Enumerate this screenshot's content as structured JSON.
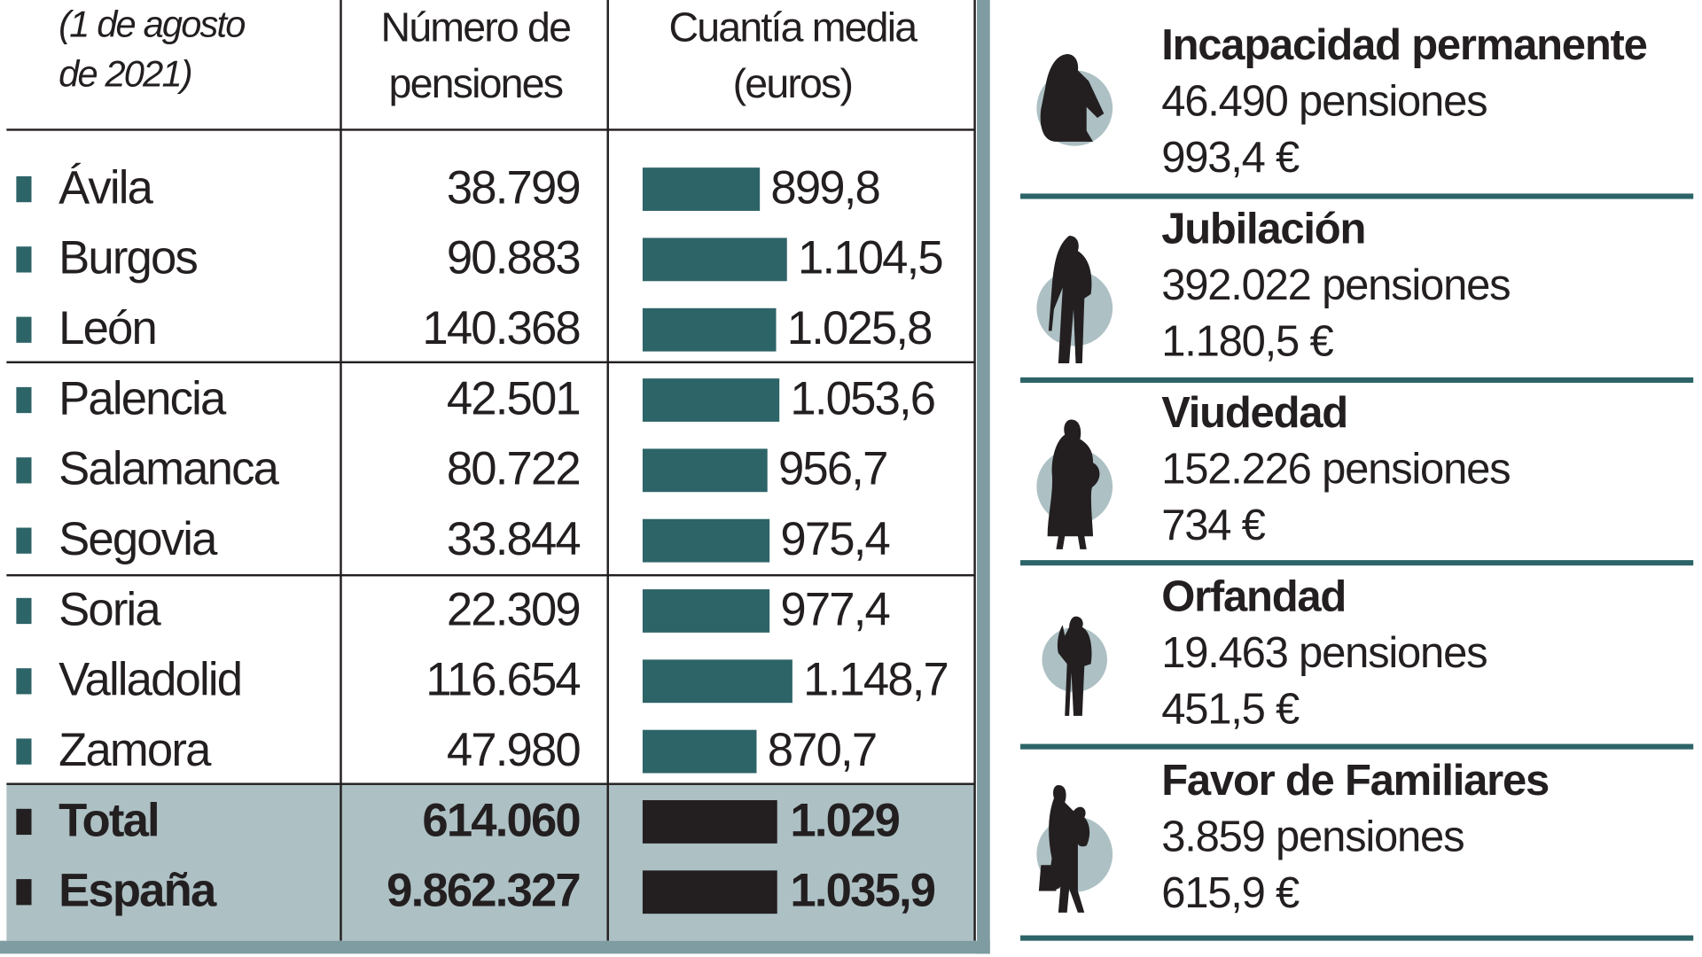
{
  "table": {
    "header": {
      "date_label_line1": "(1 de agosto",
      "date_label_line2": "de 2021)",
      "col_count_line1": "Número de",
      "col_count_line2": "pensiones",
      "col_amount_line1": "Cuantía media",
      "col_amount_line2": "(euros)"
    },
    "rows": [
      {
        "province": "Ávila",
        "count": "38.799",
        "amount": "899,8",
        "value": 899.8
      },
      {
        "province": "Burgos",
        "count": "90.883",
        "amount": "1.104,5",
        "value": 1104.5
      },
      {
        "province": "León",
        "count": "140.368",
        "amount": "1.025,8",
        "value": 1025.8
      },
      {
        "province": "Palencia",
        "count": "42.501",
        "amount": "1.053,6",
        "value": 1053.6
      },
      {
        "province": "Salamanca",
        "count": "80.722",
        "amount": "956,7",
        "value": 956.7
      },
      {
        "province": "Segovia",
        "count": "33.844",
        "amount": "975,4",
        "value": 975.4
      },
      {
        "province": "Soria",
        "count": "22.309",
        "amount": "977,4",
        "value": 977.4
      },
      {
        "province": "Valladolid",
        "count": "116.654",
        "amount": "1.148,7",
        "value": 1148.7
      },
      {
        "province": "Zamora",
        "count": "47.980",
        "amount": "870,7",
        "value": 870.7
      }
    ],
    "totals": [
      {
        "province": "Total",
        "count": "614.060",
        "amount": "1.029",
        "value": 1029
      },
      {
        "province": "España",
        "count": "9.862.327",
        "amount": "1.035,9",
        "value": 1035.9
      }
    ]
  },
  "types": [
    {
      "title": "Incapacidad permanente",
      "count": "46.490 pensiones",
      "amount": "993,4 €",
      "icon": "wheelchair-person-icon"
    },
    {
      "title": "Jubilación",
      "count": "392.022 pensiones",
      "amount": "1.180,5 €",
      "icon": "elderly-person-icon"
    },
    {
      "title": "Viudedad",
      "count": "152.226 pensiones",
      "amount": "734 €",
      "icon": "widow-icon"
    },
    {
      "title": "Orfandad",
      "count": "19.463 pensiones",
      "amount": "451,5 €",
      "icon": "child-icon"
    },
    {
      "title": "Favor de Familiares",
      "count": "3.859 pensiones",
      "amount": "615,9 €",
      "icon": "family-icon"
    }
  ],
  "colors": {
    "bar": "#2d6468",
    "total_bar": "#231f20",
    "total_bg": "#adc0c4",
    "circle": "#adc0c4"
  }
}
